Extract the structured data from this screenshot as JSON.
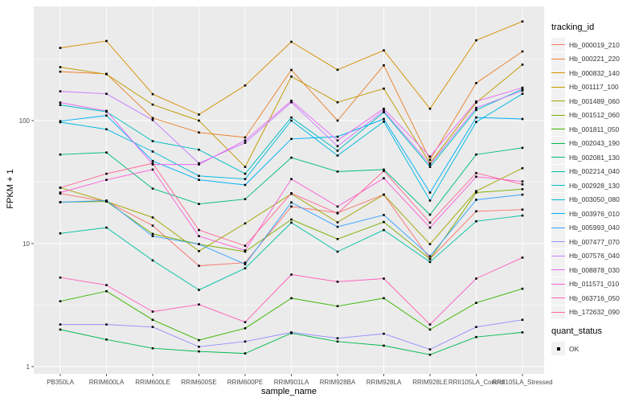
{
  "legend": {
    "title": "tracking_id"
  },
  "legend_quant": {
    "title": "quant_status",
    "items": [
      {
        "label": "OK",
        "marker": "black-square"
      }
    ]
  },
  "style": {
    "panel_bg": "#EBEBEB",
    "grid_color": "#FFFFFF",
    "key_bg": "#F2F2F2",
    "axis_text_color": "#4D4D4D",
    "tick_color": "#333333",
    "marker_color": "#000000"
  },
  "chart_data": {
    "type": "line",
    "title": "",
    "xlabel": "sample_name",
    "ylabel": "FPKM + 1",
    "y_scale": "log10",
    "y_ticks": [
      1,
      10,
      100
    ],
    "y_minor_gridlines": [
      3.162,
      31.62,
      316.2
    ],
    "ylim": [
      0.9,
      830
    ],
    "grid": true,
    "legend_position": "right",
    "marker": "black-square",
    "categories": [
      "PB350LA",
      "RRIM600LA",
      "RRIM600LE",
      "RRIM600SE",
      "RRIM600PE",
      "RRIM901LA",
      "RRIM928BA",
      "RRIM928LA",
      "RRIM928LE",
      "RRII105LA_Control",
      "RRII105LA_Stressed"
    ],
    "series": [
      {
        "name": "Hb_000019_210",
        "color": "#F8766D",
        "values": [
          25.5,
          22,
          14,
          6.6,
          7,
          20,
          17.8,
          25,
          7.5,
          18.3,
          18.9
        ]
      },
      {
        "name": "Hb_000221_220",
        "color": "#EA8331",
        "values": [
          250,
          240,
          105,
          80,
          73,
          258,
          100,
          281,
          48,
          202,
          365
        ]
      },
      {
        "name": "Hb_000832_140",
        "color": "#D89000",
        "values": [
          390,
          444,
          164,
          112,
          193,
          437,
          259,
          372,
          125,
          450,
          640
        ]
      },
      {
        "name": "Hb_001117_100",
        "color": "#C09B00",
        "values": [
          272,
          238,
          135,
          100,
          42,
          228,
          141,
          182,
          45,
          140,
          285
        ]
      },
      {
        "name": "Hb_001489_060",
        "color": "#A3A500",
        "values": [
          28.5,
          22,
          16.3,
          8.7,
          14.6,
          25.4,
          14.9,
          25,
          9.9,
          26.7,
          41
        ]
      },
      {
        "name": "Hb_001512_060",
        "color": "#7CAE00",
        "values": [
          21.7,
          22,
          12,
          9.9,
          8.6,
          15.7,
          10.9,
          15,
          7.5,
          26,
          27.7
        ]
      },
      {
        "name": "Hb_001811_050",
        "color": "#39B600",
        "values": [
          3.4,
          4.1,
          2.4,
          1.64,
          2.05,
          3.6,
          3.1,
          3.6,
          2,
          3.3,
          4.3
        ]
      },
      {
        "name": "Hb_002043_190",
        "color": "#00BB4E",
        "values": [
          2,
          1.66,
          1.41,
          1.33,
          1.28,
          1.87,
          1.6,
          1.48,
          1.25,
          1.74,
          1.9
        ]
      },
      {
        "name": "Hb_002081_130",
        "color": "#00BF7D",
        "values": [
          53,
          55,
          28,
          21,
          23,
          50,
          38.5,
          40,
          17.2,
          53,
          60
        ]
      },
      {
        "name": "Hb_002214_040",
        "color": "#00C1A3",
        "values": [
          12.1,
          13.5,
          7.3,
          4.2,
          6.3,
          14.8,
          8.6,
          12.9,
          7.1,
          15.2,
          16.9
        ]
      },
      {
        "name": "Hb_002928_130",
        "color": "#00BFC4",
        "values": [
          134,
          118,
          68,
          58,
          37,
          106,
          57,
          117,
          42,
          122,
          180
        ]
      },
      {
        "name": "Hb_003050_080",
        "color": "#00BAE0",
        "values": [
          97,
          85,
          56,
          35.5,
          33.5,
          100,
          52,
          98,
          22.4,
          97.5,
          165
        ]
      },
      {
        "name": "Hb_003976_010",
        "color": "#00B0F6",
        "values": [
          99,
          110,
          47,
          33,
          30,
          71,
          74,
          103,
          26,
          106,
          103
        ]
      },
      {
        "name": "Hb_005993_040",
        "color": "#35A2FF",
        "values": [
          21.7,
          22.4,
          11.5,
          9.9,
          6.8,
          21.6,
          13.7,
          17.1,
          7.9,
          22.7,
          25
        ]
      },
      {
        "name": "Hb_007477_070",
        "color": "#9590FF",
        "values": [
          2.2,
          2.2,
          2.1,
          1.45,
          1.6,
          1.9,
          1.7,
          1.85,
          1.38,
          2.1,
          2.4
        ]
      },
      {
        "name": "Hb_007576_040",
        "color": "#C77CFF",
        "values": [
          173,
          165,
          101,
          45,
          66,
          141,
          62,
          120,
          44,
          127,
          175
        ]
      },
      {
        "name": "Hb_008878_030",
        "color": "#E76BF3",
        "values": [
          140,
          120,
          44,
          44,
          69,
          145,
          69,
          125,
          51,
          143,
          185
        ]
      },
      {
        "name": "Hb_011571_010",
        "color": "#FA62DB",
        "values": [
          26,
          33,
          40,
          11.5,
          8.8,
          33.5,
          20,
          34,
          13.5,
          35,
          32
        ]
      },
      {
        "name": "Hb_063716_050",
        "color": "#FF62BC",
        "values": [
          5.3,
          4.6,
          2.8,
          3.2,
          2.3,
          5.6,
          4.9,
          5.2,
          2.2,
          5.2,
          7.7
        ]
      },
      {
        "name": "Hb_172632_090",
        "color": "#FF6A98",
        "values": [
          28.5,
          37,
          45,
          12.9,
          9.6,
          25.7,
          17.6,
          39,
          14.8,
          37.5,
          30.3
        ]
      }
    ]
  }
}
